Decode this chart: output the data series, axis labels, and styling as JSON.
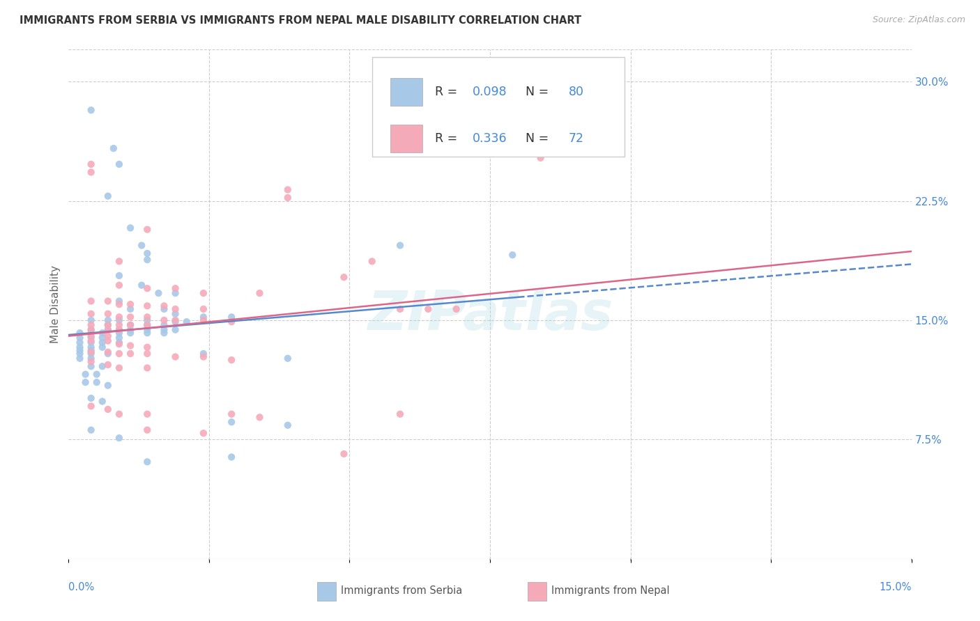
{
  "title": "IMMIGRANTS FROM SERBIA VS IMMIGRANTS FROM NEPAL MALE DISABILITY CORRELATION CHART",
  "source": "Source: ZipAtlas.com",
  "ylabel": "Male Disability",
  "right_yticks": [
    "30.0%",
    "22.5%",
    "15.0%",
    "7.5%"
  ],
  "right_ytick_vals": [
    0.3,
    0.225,
    0.15,
    0.075
  ],
  "xlim": [
    0.0,
    0.15
  ],
  "ylim": [
    0.0,
    0.32
  ],
  "serbia_color": "#a8c8e8",
  "nepal_color": "#f5aaba",
  "serbia_line_color": "#5588cc",
  "nepal_line_color": "#dd6688",
  "serbia_R": 0.098,
  "serbia_N": 80,
  "nepal_R": 0.336,
  "nepal_N": 72,
  "legend_val_color": "#4488dd",
  "title_color": "#333333",
  "axis_color": "#4488dd",
  "tick_color": "#666666",
  "watermark": "ZIPatlas",
  "serbia_points": [
    [
      0.004,
      0.282
    ],
    [
      0.008,
      0.258
    ],
    [
      0.009,
      0.248
    ],
    [
      0.007,
      0.228
    ],
    [
      0.011,
      0.208
    ],
    [
      0.013,
      0.197
    ],
    [
      0.014,
      0.192
    ],
    [
      0.014,
      0.188
    ],
    [
      0.009,
      0.178
    ],
    [
      0.013,
      0.172
    ],
    [
      0.016,
      0.167
    ],
    [
      0.019,
      0.167
    ],
    [
      0.009,
      0.162
    ],
    [
      0.011,
      0.157
    ],
    [
      0.017,
      0.157
    ],
    [
      0.019,
      0.154
    ],
    [
      0.024,
      0.152
    ],
    [
      0.029,
      0.152
    ],
    [
      0.004,
      0.15
    ],
    [
      0.007,
      0.15
    ],
    [
      0.009,
      0.15
    ],
    [
      0.014,
      0.15
    ],
    [
      0.019,
      0.149
    ],
    [
      0.021,
      0.149
    ],
    [
      0.007,
      0.147
    ],
    [
      0.011,
      0.147
    ],
    [
      0.014,
      0.147
    ],
    [
      0.017,
      0.147
    ],
    [
      0.004,
      0.144
    ],
    [
      0.007,
      0.144
    ],
    [
      0.009,
      0.144
    ],
    [
      0.011,
      0.144
    ],
    [
      0.014,
      0.144
    ],
    [
      0.017,
      0.144
    ],
    [
      0.019,
      0.144
    ],
    [
      0.002,
      0.142
    ],
    [
      0.004,
      0.142
    ],
    [
      0.006,
      0.142
    ],
    [
      0.009,
      0.142
    ],
    [
      0.011,
      0.142
    ],
    [
      0.014,
      0.142
    ],
    [
      0.017,
      0.142
    ],
    [
      0.002,
      0.139
    ],
    [
      0.004,
      0.139
    ],
    [
      0.006,
      0.139
    ],
    [
      0.009,
      0.139
    ],
    [
      0.002,
      0.136
    ],
    [
      0.004,
      0.136
    ],
    [
      0.006,
      0.136
    ],
    [
      0.009,
      0.136
    ],
    [
      0.002,
      0.133
    ],
    [
      0.004,
      0.133
    ],
    [
      0.006,
      0.133
    ],
    [
      0.002,
      0.131
    ],
    [
      0.004,
      0.131
    ],
    [
      0.002,
      0.129
    ],
    [
      0.004,
      0.129
    ],
    [
      0.007,
      0.129
    ],
    [
      0.002,
      0.126
    ],
    [
      0.004,
      0.126
    ],
    [
      0.004,
      0.121
    ],
    [
      0.006,
      0.121
    ],
    [
      0.003,
      0.116
    ],
    [
      0.005,
      0.116
    ],
    [
      0.003,
      0.111
    ],
    [
      0.005,
      0.111
    ],
    [
      0.007,
      0.109
    ],
    [
      0.004,
      0.101
    ],
    [
      0.006,
      0.099
    ],
    [
      0.024,
      0.129
    ],
    [
      0.039,
      0.126
    ],
    [
      0.059,
      0.197
    ],
    [
      0.079,
      0.191
    ],
    [
      0.004,
      0.081
    ],
    [
      0.009,
      0.076
    ],
    [
      0.029,
      0.086
    ],
    [
      0.039,
      0.084
    ],
    [
      0.014,
      0.061
    ],
    [
      0.029,
      0.064
    ]
  ],
  "nepal_points": [
    [
      0.004,
      0.248
    ],
    [
      0.004,
      0.243
    ],
    [
      0.014,
      0.207
    ],
    [
      0.039,
      0.232
    ],
    [
      0.039,
      0.227
    ],
    [
      0.009,
      0.187
    ],
    [
      0.009,
      0.172
    ],
    [
      0.014,
      0.17
    ],
    [
      0.019,
      0.17
    ],
    [
      0.024,
      0.167
    ],
    [
      0.004,
      0.162
    ],
    [
      0.007,
      0.162
    ],
    [
      0.009,
      0.16
    ],
    [
      0.011,
      0.16
    ],
    [
      0.014,
      0.159
    ],
    [
      0.017,
      0.159
    ],
    [
      0.019,
      0.157
    ],
    [
      0.024,
      0.157
    ],
    [
      0.004,
      0.154
    ],
    [
      0.007,
      0.154
    ],
    [
      0.009,
      0.152
    ],
    [
      0.011,
      0.152
    ],
    [
      0.014,
      0.152
    ],
    [
      0.017,
      0.15
    ],
    [
      0.019,
      0.15
    ],
    [
      0.024,
      0.15
    ],
    [
      0.029,
      0.149
    ],
    [
      0.004,
      0.147
    ],
    [
      0.007,
      0.147
    ],
    [
      0.009,
      0.147
    ],
    [
      0.011,
      0.147
    ],
    [
      0.014,
      0.147
    ],
    [
      0.004,
      0.144
    ],
    [
      0.007,
      0.144
    ],
    [
      0.009,
      0.144
    ],
    [
      0.004,
      0.14
    ],
    [
      0.007,
      0.14
    ],
    [
      0.004,
      0.137
    ],
    [
      0.007,
      0.137
    ],
    [
      0.009,
      0.135
    ],
    [
      0.011,
      0.134
    ],
    [
      0.014,
      0.133
    ],
    [
      0.004,
      0.13
    ],
    [
      0.007,
      0.13
    ],
    [
      0.009,
      0.129
    ],
    [
      0.011,
      0.129
    ],
    [
      0.014,
      0.129
    ],
    [
      0.019,
      0.127
    ],
    [
      0.024,
      0.127
    ],
    [
      0.029,
      0.125
    ],
    [
      0.004,
      0.124
    ],
    [
      0.007,
      0.122
    ],
    [
      0.009,
      0.12
    ],
    [
      0.014,
      0.12
    ],
    [
      0.034,
      0.167
    ],
    [
      0.049,
      0.177
    ],
    [
      0.054,
      0.187
    ],
    [
      0.059,
      0.157
    ],
    [
      0.064,
      0.157
    ],
    [
      0.069,
      0.157
    ],
    [
      0.084,
      0.252
    ],
    [
      0.059,
      0.091
    ],
    [
      0.049,
      0.066
    ],
    [
      0.004,
      0.096
    ],
    [
      0.007,
      0.094
    ],
    [
      0.009,
      0.091
    ],
    [
      0.014,
      0.091
    ],
    [
      0.029,
      0.091
    ],
    [
      0.034,
      0.089
    ],
    [
      0.014,
      0.081
    ],
    [
      0.024,
      0.079
    ]
  ]
}
